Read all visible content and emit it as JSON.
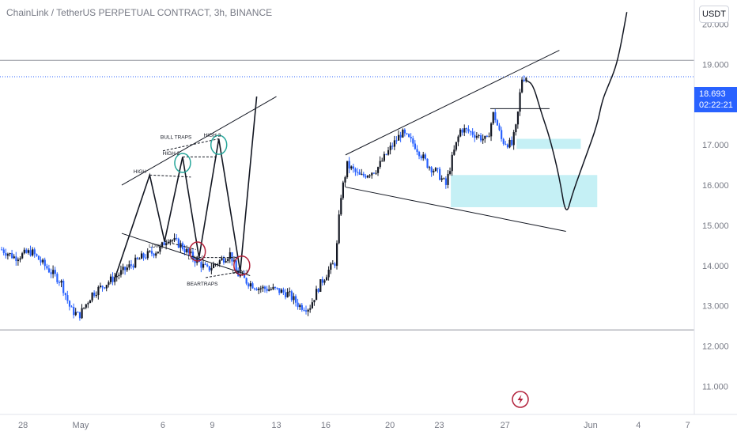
{
  "header": {
    "title": "ChainLink / TetherUS PERPETUAL CONTRACT, 3h, BINANCE",
    "currency": "USDT"
  },
  "last_price": {
    "value": "18.693",
    "countdown": "02:22:21",
    "price": 18.693,
    "color": "#2962ff"
  },
  "colors": {
    "candle_up": "#131722",
    "candle_down": "#2962ff",
    "zone_fill": "#b2ebf2",
    "horizontal_line": "#9598a1",
    "axis_text": "#787b86"
  },
  "icons": {
    "bottom_logo": "tradingview-flash-icon"
  },
  "chart_data": {
    "type": "candlestick",
    "title": "ChainLink / TetherUS PERPETUAL CONTRACT, 3h, BINANCE",
    "ylim": [
      10.3,
      20.6
    ],
    "y_ticks": [
      "20.000",
      "19.000",
      "18.000",
      "17.000",
      "16.000",
      "15.000",
      "14.000",
      "13.000",
      "12.000",
      "11.000"
    ],
    "y_tick_values": [
      20,
      19,
      18,
      17,
      16,
      15,
      14,
      13,
      12,
      11
    ],
    "x_ticks": [
      "28",
      "May",
      "6",
      "9",
      "13",
      "16",
      "20",
      "23",
      "27",
      "Jun",
      "4",
      "7"
    ],
    "x_tick_pos": [
      1,
      4.5,
      9.5,
      12.5,
      16.4,
      19.4,
      23.3,
      26.3,
      30.3,
      35.5,
      38.4,
      41.4
    ],
    "x_range": [
      -0.4,
      41.8
    ],
    "grid": false,
    "horizontal_lines": [
      19.1,
      12.4
    ],
    "price_waypoints": [
      [
        -0.3,
        14.4
      ],
      [
        0.5,
        14.2
      ],
      [
        1.5,
        14.35
      ],
      [
        2.3,
        14.0
      ],
      [
        3.3,
        13.6
      ],
      [
        3.9,
        12.9
      ],
      [
        4.4,
        12.75
      ],
      [
        5.2,
        13.3
      ],
      [
        6.2,
        13.6
      ],
      [
        7.2,
        13.9
      ],
      [
        8.2,
        14.2
      ],
      [
        9.3,
        14.4
      ],
      [
        9.8,
        14.7
      ],
      [
        10.6,
        14.5
      ],
      [
        11.3,
        14.2
      ],
      [
        12.2,
        13.9
      ],
      [
        12.9,
        14.1
      ],
      [
        13.6,
        14.3
      ],
      [
        14.0,
        13.8
      ],
      [
        14.6,
        13.6
      ],
      [
        15.3,
        13.45
      ],
      [
        16.3,
        13.4
      ],
      [
        17.1,
        13.3
      ],
      [
        17.8,
        13.0
      ],
      [
        18.4,
        12.95
      ],
      [
        19.0,
        13.5
      ],
      [
        19.6,
        13.9
      ],
      [
        20.0,
        14.1
      ],
      [
        20.3,
        15.7
      ],
      [
        20.7,
        16.5
      ],
      [
        21.5,
        16.2
      ],
      [
        22.5,
        16.4
      ],
      [
        23.3,
        16.9
      ],
      [
        24.0,
        17.3
      ],
      [
        24.8,
        17.0
      ],
      [
        25.6,
        16.5
      ],
      [
        26.2,
        16.3
      ],
      [
        26.7,
        16.0
      ],
      [
        27.1,
        16.7
      ],
      [
        27.6,
        17.4
      ],
      [
        28.3,
        17.3
      ],
      [
        29.2,
        17.1
      ],
      [
        29.6,
        17.8
      ],
      [
        30.1,
        17.1
      ],
      [
        30.7,
        17.0
      ],
      [
        31.0,
        17.5
      ],
      [
        31.3,
        18.65
      ],
      [
        31.6,
        18.7
      ]
    ],
    "annotations": [
      {
        "text": "HIGH",
        "x": 8.1,
        "y": 16.3
      },
      {
        "text": "HIGH 2",
        "x": 10.0,
        "y": 16.75
      },
      {
        "text": "HIGH 3",
        "x": 12.5,
        "y": 17.2
      },
      {
        "text": "BULL TRAPS",
        "x": 10.3,
        "y": 17.15
      },
      {
        "text": "LOW",
        "x": 9.0,
        "y": 14.45
      },
      {
        "text": "LOW 2",
        "x": 11.5,
        "y": 14.15
      },
      {
        "text": "LOW 3",
        "x": 14.2,
        "y": 13.8
      },
      {
        "text": "BEARTRAPS",
        "x": 11.9,
        "y": 13.5
      }
    ],
    "zones": [
      {
        "x1": 31.0,
        "x2": 34.9,
        "y1": 16.9,
        "y2": 17.15
      },
      {
        "x1": 27.0,
        "x2": 35.9,
        "y1": 15.45,
        "y2": 16.25
      }
    ],
    "trendlines": [
      [
        [
          7.0,
          16.0
        ],
        [
          16.4,
          18.2
        ]
      ],
      [
        [
          7.0,
          14.8
        ],
        [
          14.8,
          13.75
        ]
      ],
      [
        [
          20.6,
          16.75
        ],
        [
          33.6,
          19.35
        ]
      ],
      [
        [
          20.6,
          15.95
        ],
        [
          34.0,
          14.85
        ]
      ],
      [
        [
          29.4,
          17.9
        ],
        [
          33.0,
          17.9
        ]
      ]
    ],
    "pattern_path": [
      [
        6.6,
        13.7
      ],
      [
        8.7,
        16.25
      ],
      [
        9.6,
        14.6
      ],
      [
        10.7,
        16.7
      ],
      [
        11.7,
        14.2
      ],
      [
        12.9,
        17.15
      ],
      [
        14.2,
        13.85
      ],
      [
        15.2,
        18.2
      ]
    ],
    "dashed_lines": [
      [
        [
          8.7,
          16.25
        ],
        [
          11.2,
          16.2
        ]
      ],
      [
        [
          10.7,
          16.7
        ],
        [
          12.8,
          16.7
        ]
      ],
      [
        [
          9.5,
          16.85
        ],
        [
          12.9,
          17.15
        ]
      ],
      [
        [
          9.6,
          14.6
        ],
        [
          11.5,
          14.4
        ]
      ],
      [
        [
          11.7,
          14.2
        ],
        [
          14.1,
          14.2
        ]
      ],
      [
        [
          12.1,
          13.7
        ],
        [
          14.2,
          13.85
        ]
      ]
    ],
    "circles": [
      {
        "x": 10.7,
        "y": 16.55,
        "color": "#26a69a"
      },
      {
        "x": 12.9,
        "y": 17.0,
        "color": "#26a69a"
      },
      {
        "x": 11.6,
        "y": 14.35,
        "color": "#b2203a"
      },
      {
        "x": 14.3,
        "y": 14.0,
        "color": "#b2203a"
      }
    ],
    "projection_path": [
      [
        31.6,
        18.6
      ],
      [
        32.0,
        18.5
      ],
      [
        32.5,
        17.8
      ],
      [
        33.0,
        17.2
      ],
      [
        33.6,
        16.2
      ],
      [
        34.0,
        15.2
      ],
      [
        34.4,
        15.8
      ],
      [
        35.2,
        16.7
      ],
      [
        35.9,
        17.5
      ],
      [
        36.2,
        18.1
      ],
      [
        36.6,
        18.5
      ],
      [
        37.0,
        18.9
      ],
      [
        37.3,
        19.4
      ],
      [
        37.7,
        20.3
      ]
    ]
  }
}
